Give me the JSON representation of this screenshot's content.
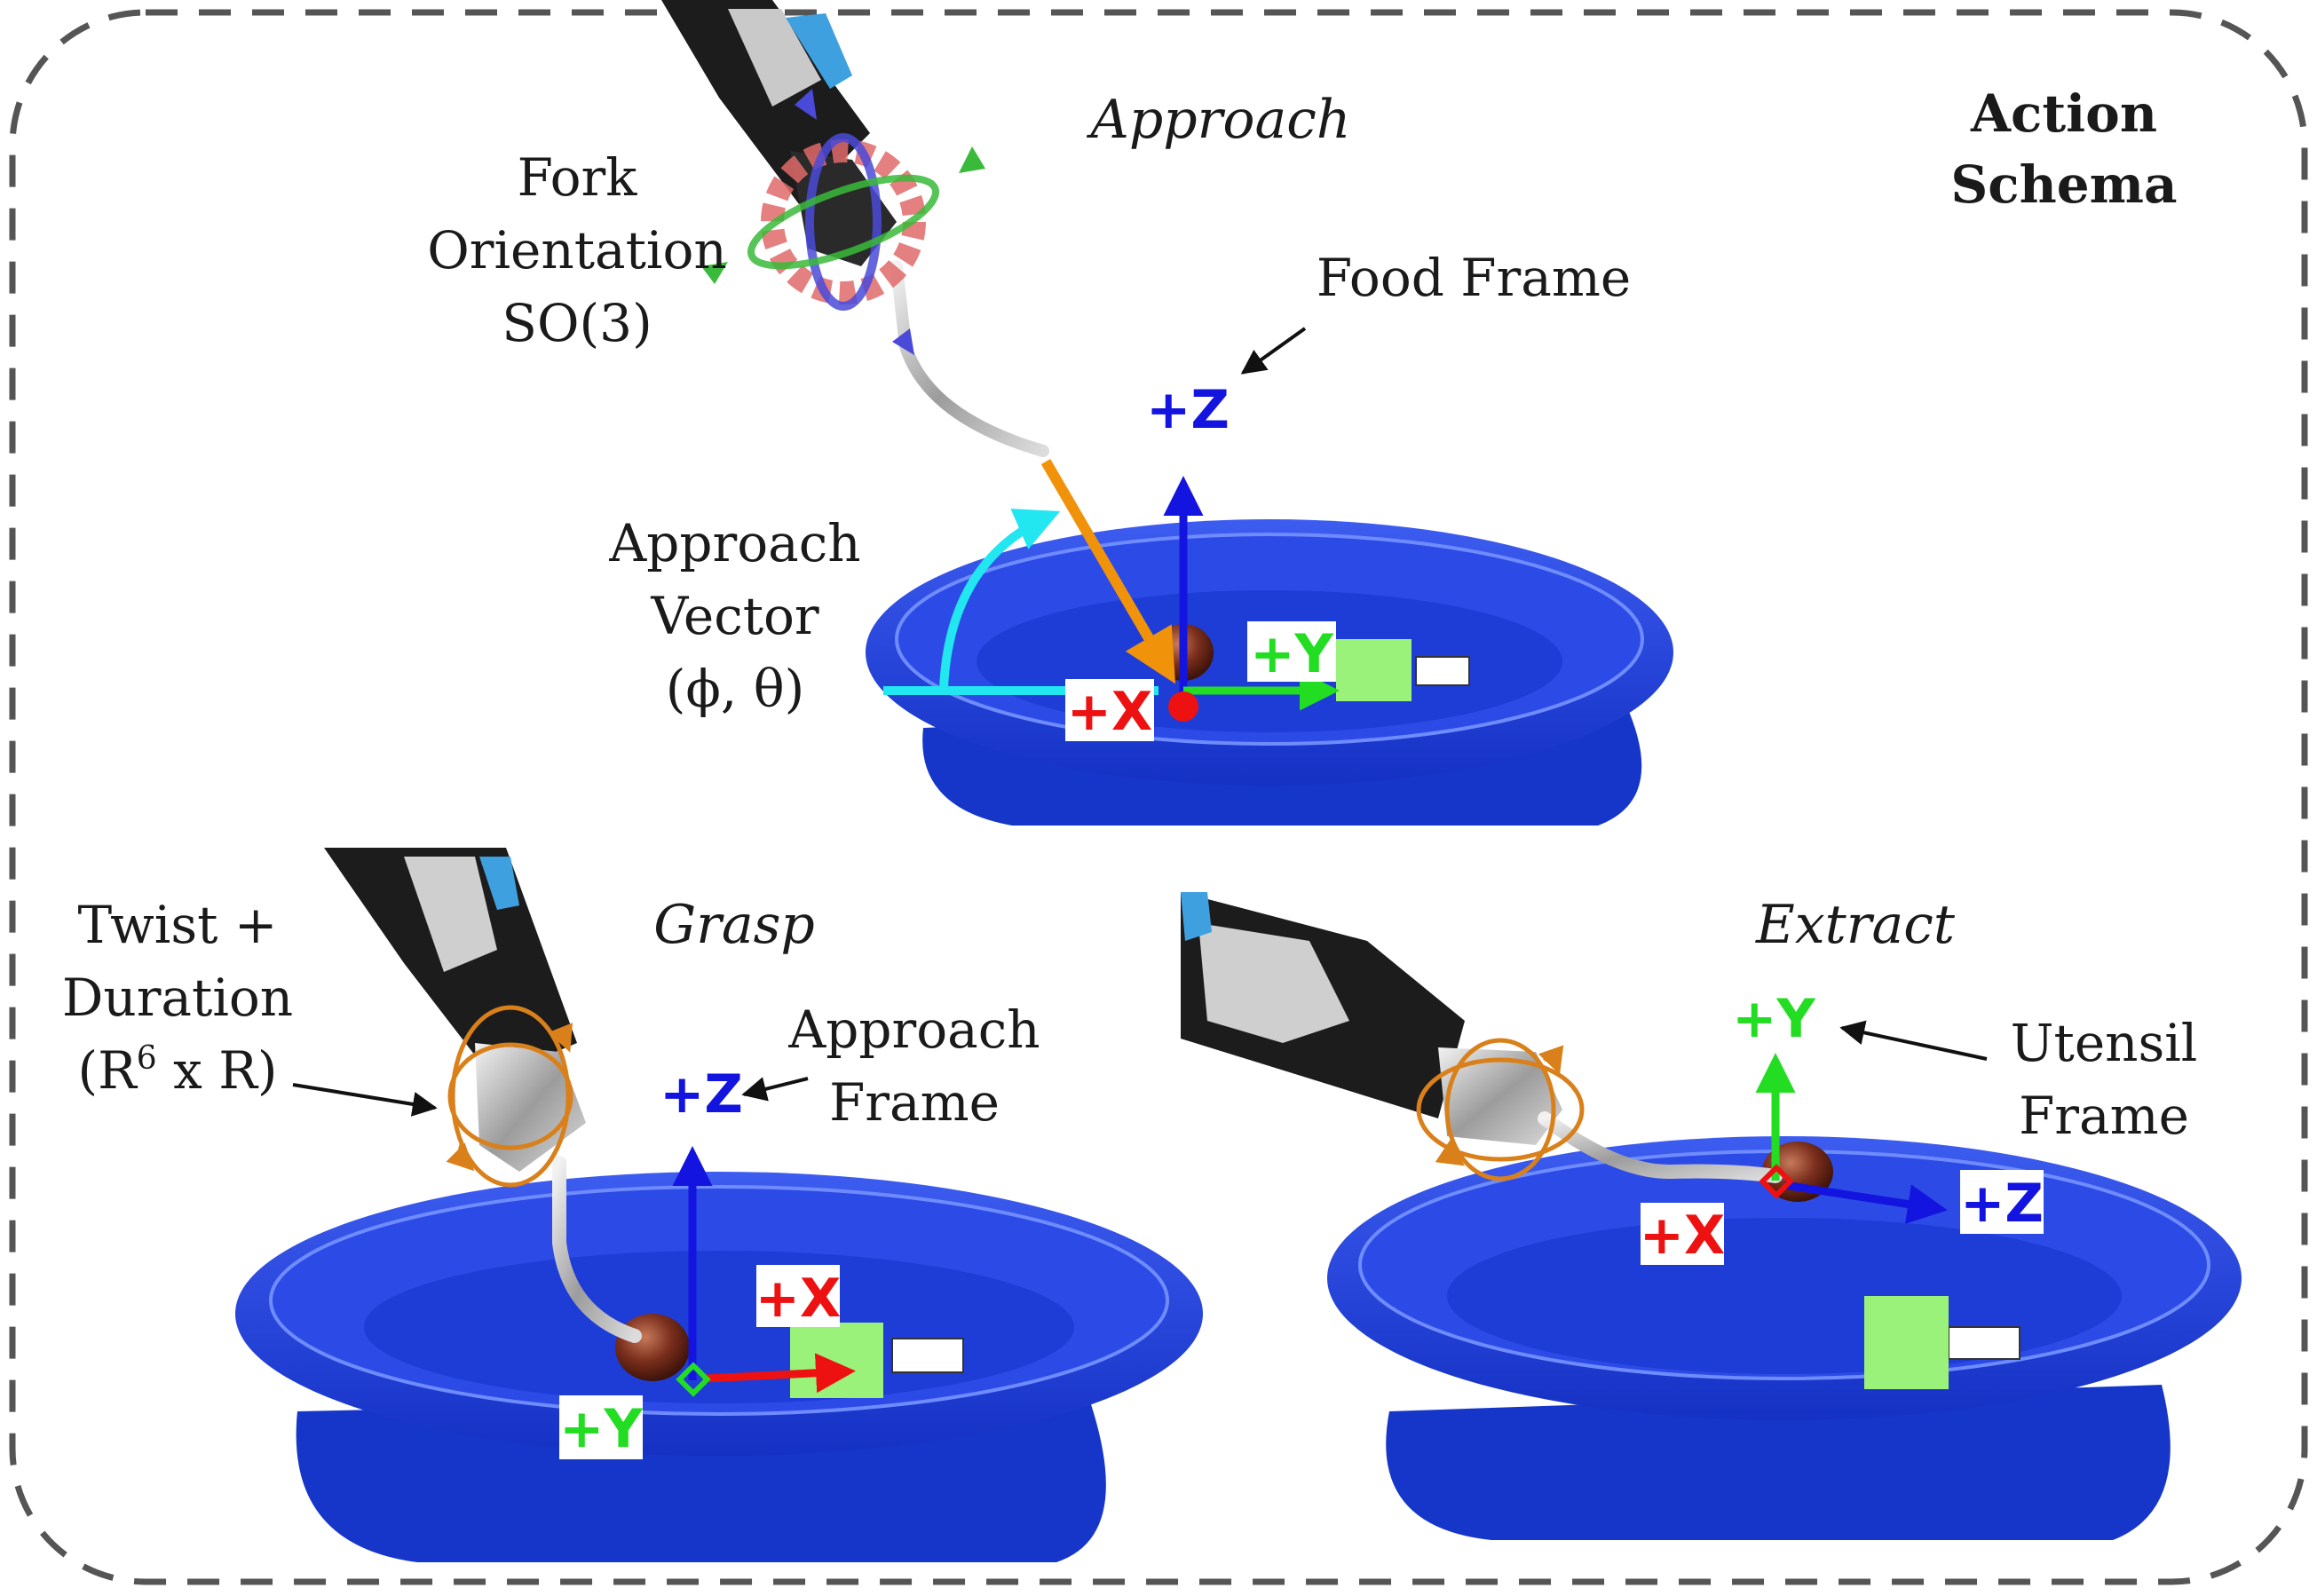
{
  "title": {
    "line1": "Action",
    "line2": "Schema"
  },
  "panels": {
    "approach": {
      "heading": "Approach",
      "fork_label": [
        "Fork",
        "Orientation",
        "SO(3)"
      ],
      "frame_label": "Food Frame",
      "vector_label": [
        "Approach",
        "Vector",
        "(ϕ, θ)"
      ],
      "axes": {
        "z": "+Z",
        "y": "+Y",
        "x": "+X"
      }
    },
    "grasp": {
      "heading": "Grasp",
      "twist_label": [
        "Twist +",
        "Duration"
      ],
      "twist_space": {
        "base": "(R",
        "sup": "6",
        "rest": " x R)"
      },
      "frame_label": [
        "Approach",
        "Frame"
      ],
      "axes": {
        "z": "+Z",
        "x": "+X",
        "y": "+Y"
      }
    },
    "extract": {
      "heading": "Extract",
      "frame_label": [
        "Utensil",
        "Frame"
      ],
      "axes": {
        "y": "+Y",
        "x": "+X",
        "z": "+Z"
      }
    }
  },
  "colors": {
    "plate": "#1f3fd6",
    "plate_dark": "#10279e",
    "x_axis": "#ee1111",
    "y_axis": "#22dd22",
    "z_axis": "#1414e0",
    "approach_vector": "#f0930a",
    "angle_arc": "#22e6f0",
    "twist": "#d9801a",
    "border": "#555555"
  },
  "icons": [
    "robot-arm-icon",
    "fork-icon",
    "food-item-icon",
    "plate-icon",
    "rotation-gizmo-icon",
    "twist-rings-icon",
    "fiducial-tag-icon"
  ]
}
